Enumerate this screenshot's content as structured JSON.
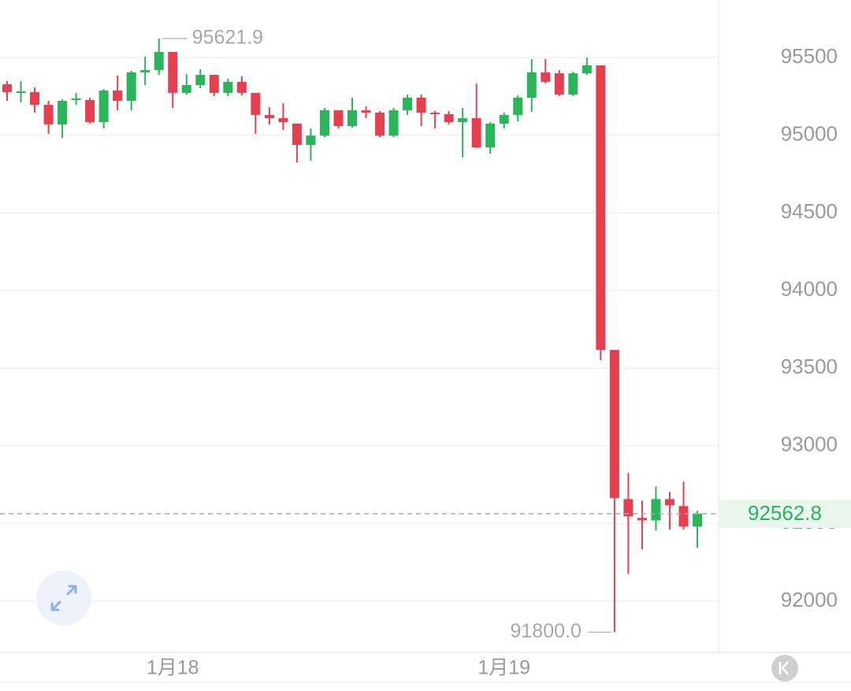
{
  "chart_data": {
    "type": "candlestick",
    "categories": [
      null,
      null,
      null,
      null,
      null,
      null,
      null,
      null,
      null,
      null,
      null,
      null,
      "1月18",
      null,
      null,
      null,
      null,
      null,
      null,
      null,
      null,
      null,
      null,
      null,
      null,
      null,
      null,
      null,
      null,
      null,
      null,
      null,
      null,
      null,
      null,
      null,
      "1月19",
      null,
      null,
      null,
      null,
      null,
      null,
      null,
      null,
      null,
      null,
      null,
      null,
      null,
      null
    ],
    "open": [
      95327,
      95272,
      95277,
      95195,
      95069,
      95226,
      95226,
      95084,
      95287,
      95221,
      95404,
      95419,
      95536,
      95272,
      95322,
      95388,
      95272,
      95343,
      95272,
      95130,
      95109,
      95074,
      94937,
      94997,
      95160,
      95058,
      95160,
      95145,
      94997,
      95160,
      95241,
      95145,
      95135,
      95084,
      95109,
      94921,
      95074,
      95130,
      95241,
      95404,
      95398,
      95261,
      95398,
      95449,
      93617,
      92657,
      92536,
      92520,
      92657,
      92612,
      92480
    ],
    "high": [
      95348,
      95348,
      95307,
      95221,
      95231,
      95272,
      95241,
      95297,
      95383,
      95414,
      95505,
      95621.9,
      95536,
      95393,
      95424,
      95388,
      95363,
      95378,
      95272,
      95180,
      95206,
      95074,
      95043,
      95175,
      95160,
      95241,
      95185,
      95155,
      95175,
      95261,
      95261,
      95155,
      95155,
      95175,
      95332,
      95084,
      95145,
      95256,
      95490,
      95490,
      95419,
      95409,
      95500,
      95449,
      93617,
      92825,
      92647,
      92739,
      92703,
      92769,
      92582
    ],
    "low": [
      95221,
      95211,
      95145,
      95008,
      94982,
      95195,
      95074,
      95043,
      95160,
      95160,
      95322,
      95388,
      95175,
      95261,
      95302,
      95251,
      95251,
      95256,
      95008,
      95069,
      95033,
      94825,
      94835,
      94987,
      95043,
      95048,
      95109,
      94987,
      94987,
      95130,
      95058,
      95043,
      95069,
      94855,
      94916,
      94881,
      95043,
      95089,
      95150,
      95332,
      95251,
      95251,
      95388,
      93551,
      91800.0,
      92175,
      92333,
      92454,
      92459,
      92459,
      92343
    ],
    "close": [
      95277,
      95282,
      95195,
      95069,
      95221,
      95236,
      95084,
      95287,
      95221,
      95404,
      95419,
      95536,
      95272,
      95322,
      95388,
      95272,
      95343,
      95272,
      95130,
      95109,
      95084,
      94937,
      94997,
      95160,
      95058,
      95160,
      95145,
      94997,
      95160,
      95241,
      95145,
      95135,
      95084,
      95109,
      94921,
      95074,
      95130,
      95241,
      95404,
      95343,
      95261,
      95398,
      95449,
      93617,
      92663,
      92546,
      92520,
      92657,
      92617,
      92480,
      92562.8
    ],
    "up_color": "#2bb45a",
    "down_color": "#e5404f",
    "ylim": [
      91670,
      95870
    ],
    "yticks": [
      92000,
      92500,
      93000,
      93500,
      94000,
      94500,
      95000,
      95500
    ],
    "grid": true,
    "high_label": "95621.9",
    "low_label": "91800.0",
    "last_price_label": "92562.8"
  }
}
